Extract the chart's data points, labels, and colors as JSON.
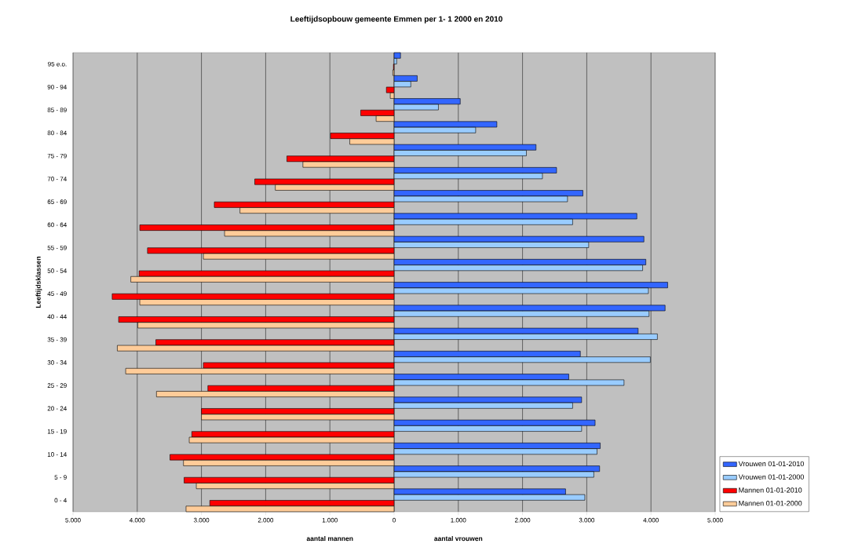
{
  "chart_data": {
    "type": "bar",
    "orientation": "horizontal",
    "title": "Leeftijdsopbouw gemeente Emmen per 1- 1 2000 en 2010",
    "xlabel": "aantal mannen",
    "ylabel": "Leeftijdsklassen",
    "annotations": [
      "aantal vrouwen"
    ],
    "categories": [
      "95 e.o.",
      "90 - 94",
      "85 - 89",
      "80 - 84",
      "75 - 79",
      "70 - 74",
      "65 - 69",
      "60 - 64",
      "55 - 59",
      "50 - 54",
      "45 - 49",
      "40 - 44",
      "35 - 39",
      "30 - 34",
      "25 - 29",
      "20 - 24",
      "15 - 19",
      "10 - 14",
      "5 - 9",
      "0 - 4"
    ],
    "series": [
      {
        "name": "Vrouwen 01-01-2010",
        "color": "#3366ff",
        "values": [
          100,
          360,
          1030,
          1600,
          2210,
          2530,
          2940,
          3780,
          3890,
          3920,
          4260,
          4220,
          3800,
          2900,
          2720,
          2920,
          3130,
          3210,
          3200,
          2670
        ]
      },
      {
        "name": "Vrouwen 01-01-2000",
        "color": "#99ccff",
        "values": [
          40,
          260,
          690,
          1270,
          2060,
          2310,
          2700,
          2780,
          3030,
          3870,
          3960,
          3970,
          4100,
          3990,
          3580,
          2780,
          2920,
          3160,
          3110,
          2970
        ]
      },
      {
        "name": "Mannen 01-01-2010",
        "color": "#ff0000",
        "values": [
          -10,
          -120,
          -520,
          -990,
          -1670,
          -2170,
          -2800,
          -3960,
          -3840,
          -3970,
          -4390,
          -4290,
          -3710,
          -2970,
          -2900,
          -3000,
          -3150,
          -3490,
          -3270,
          -2870
        ]
      },
      {
        "name": "Mannen 01-01-2000",
        "color": "#ffcc99",
        "values": [
          -20,
          -60,
          -280,
          -690,
          -1420,
          -1850,
          -2400,
          -2640,
          -2970,
          -4100,
          -3960,
          -3990,
          -4310,
          -4180,
          -3700,
          -3000,
          -3190,
          -3280,
          -3080,
          -3240
        ]
      }
    ],
    "xlim": [
      -5000,
      5000
    ],
    "xticks": [
      {
        "value": -5000,
        "label": "5.000"
      },
      {
        "value": -4000,
        "label": "4.000"
      },
      {
        "value": -3000,
        "label": "3.000"
      },
      {
        "value": -2000,
        "label": "2.000"
      },
      {
        "value": -1000,
        "label": "1.000"
      },
      0,
      {
        "value": 1000,
        "label": "1.000"
      },
      {
        "value": 2000,
        "label": "2.000"
      },
      {
        "value": 3000,
        "label": "3.000"
      },
      {
        "value": 4000,
        "label": "4.000"
      },
      {
        "value": 5000,
        "label": "5.000"
      }
    ],
    "grid": "x",
    "legend": "right"
  }
}
